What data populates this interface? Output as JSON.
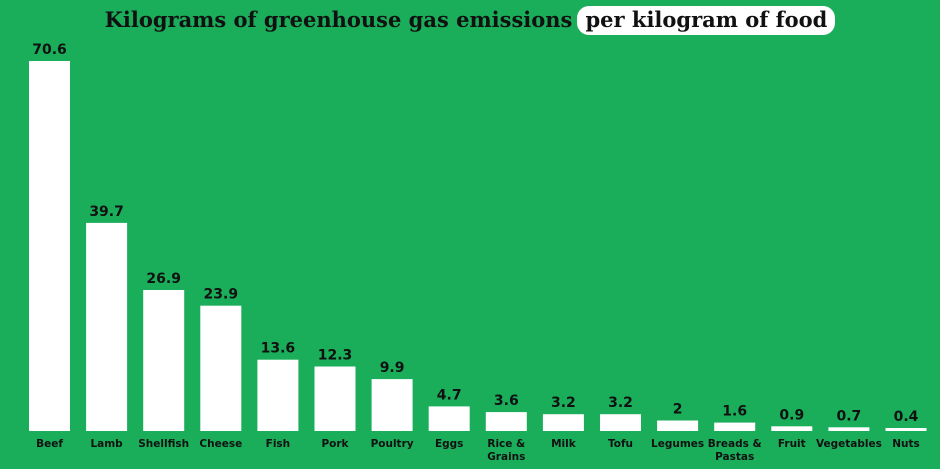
{
  "chart_data": {
    "type": "bar",
    "title": "Kilograms of greenhouse gas emissions",
    "title_highlight": "per kilogram of food",
    "categories": [
      "Beef",
      "Lamb",
      "Shellfish",
      "Cheese",
      "Fish",
      "Pork",
      "Poultry",
      "Eggs",
      "Rice & Grains",
      "Milk",
      "Tofu",
      "Legumes",
      "Breads & Pastas",
      "Fruit",
      "Vegetables",
      "Nuts"
    ],
    "values": [
      70.6,
      39.7,
      26.9,
      23.9,
      13.6,
      12.3,
      9.9,
      4.7,
      3.6,
      3.2,
      3.2,
      2,
      1.6,
      0.9,
      0.7,
      0.4
    ],
    "value_labels": [
      "70.6",
      "39.7",
      "26.9",
      "23.9",
      "13.6",
      "12.3",
      "9.9",
      "4.7",
      "3.6",
      "3.2",
      "3.2",
      "2",
      "1.6",
      "0.9",
      "0.7",
      "0.4"
    ],
    "xlabel": "",
    "ylabel": "",
    "ylim": [
      0,
      70.6
    ],
    "grid": false,
    "colors": {
      "background": "#1aad5a",
      "bar": "#ffffff",
      "text": "#111111"
    }
  }
}
